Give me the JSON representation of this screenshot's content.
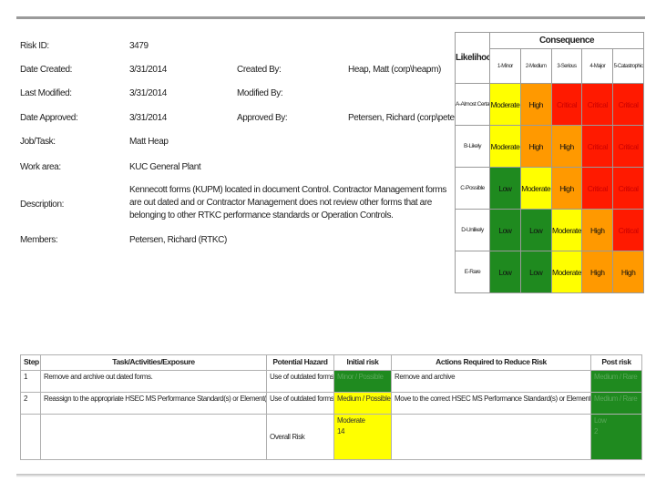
{
  "info": {
    "risk_id_label": "Risk ID:",
    "risk_id": "3479",
    "date_created_label": "Date Created:",
    "date_created": "3/31/2014",
    "created_by_label": "Created By:",
    "created_by": "Heap, Matt (corp\\heapm)",
    "last_modified_label": "Last Modified:",
    "last_modified": "3/31/2014",
    "modified_by_label": "Modified By:",
    "modified_by": "",
    "date_approved_label": "Date Approved:",
    "date_approved": "3/31/2014",
    "approved_by_label": "Approved By:",
    "approved_by": "Petersen, Richard (corp\\petersr)",
    "job_task_label": "Job/Task:",
    "job_task": "Matt Heap",
    "work_area_label": "Work area:",
    "work_area": "KUC General Plant",
    "description_label": "Description:",
    "description": "Kennecott forms (KUPM) located in document Control. Contractor Management forms are out dated and or Contractor Management does not review other forms that are belonging to other RTKC performance standards or Operation Controls.",
    "members_label": "Members:",
    "members": "Petersen, Richard (RTKC)"
  },
  "matrix": {
    "likelihood_label": "Likelihood",
    "consequence_label": "Consequence",
    "consequences": [
      "1-Minor",
      "2-Medium",
      "3-Serious",
      "4-Major",
      "5-Catastrophic"
    ],
    "rows": [
      {
        "likelihood": "A-Almost Certain",
        "cells": [
          {
            "t": "Moderate",
            "c": "mod"
          },
          {
            "t": "High",
            "c": "high"
          },
          {
            "t": "Critical",
            "c": "crit"
          },
          {
            "t": "Critical",
            "c": "crit"
          },
          {
            "t": "Critical",
            "c": "crit"
          }
        ]
      },
      {
        "likelihood": "B-Likely",
        "cells": [
          {
            "t": "Moderate",
            "c": "mod"
          },
          {
            "t": "High",
            "c": "high"
          },
          {
            "t": "High",
            "c": "high"
          },
          {
            "t": "Critical",
            "c": "crit"
          },
          {
            "t": "Critical",
            "c": "crit"
          }
        ]
      },
      {
        "likelihood": "C-Possible",
        "cells": [
          {
            "t": "Low",
            "c": "low"
          },
          {
            "t": "Moderate",
            "c": "mod"
          },
          {
            "t": "High",
            "c": "high"
          },
          {
            "t": "Critical",
            "c": "crit"
          },
          {
            "t": "Critical",
            "c": "crit"
          }
        ]
      },
      {
        "likelihood": "D-Unlikely",
        "cells": [
          {
            "t": "Low",
            "c": "low"
          },
          {
            "t": "Low",
            "c": "low"
          },
          {
            "t": "Moderate",
            "c": "mod"
          },
          {
            "t": "High",
            "c": "high"
          },
          {
            "t": "Critical",
            "c": "crit"
          }
        ]
      },
      {
        "likelihood": "E-Rare",
        "cells": [
          {
            "t": "Low",
            "c": "low"
          },
          {
            "t": "Low",
            "c": "low"
          },
          {
            "t": "Moderate",
            "c": "mod"
          },
          {
            "t": "High",
            "c": "high"
          },
          {
            "t": "High",
            "c": "high"
          }
        ]
      }
    ]
  },
  "tasks": {
    "headers": {
      "step": "Step",
      "task": "Task/Activities/Exposure",
      "hazard": "Potential Hazard",
      "initial": "Initial risk",
      "actions": "Actions Required to Reduce Risk",
      "post": "Post risk"
    },
    "rows": [
      {
        "step": "1",
        "task": "Remove and archive out dated forms.",
        "hazard": "Use of outdated forms",
        "initial": "Minor / Possible",
        "actions": "Remove and archive",
        "post": "Medium / Rare"
      },
      {
        "step": "2",
        "task": "Reassign to the appropriate HSEC MS Performance Standard(s) or Element(s)",
        "hazard": "Use of outdated forms",
        "initial": "Medium / Possible",
        "actions": "Move to the correct HSEC MS Performance Standard(s) or Element(s)",
        "post": "Medium / Rare"
      }
    ],
    "overall": {
      "label": "Overall Risk",
      "initial_level": "Moderate",
      "initial_score": "14",
      "post_level": "Low",
      "post_score": "2"
    }
  },
  "colors": {
    "low": "#1f8a1f",
    "moderate": "#ffff00",
    "high": "#ff9900",
    "critical": "#ff1a00"
  }
}
